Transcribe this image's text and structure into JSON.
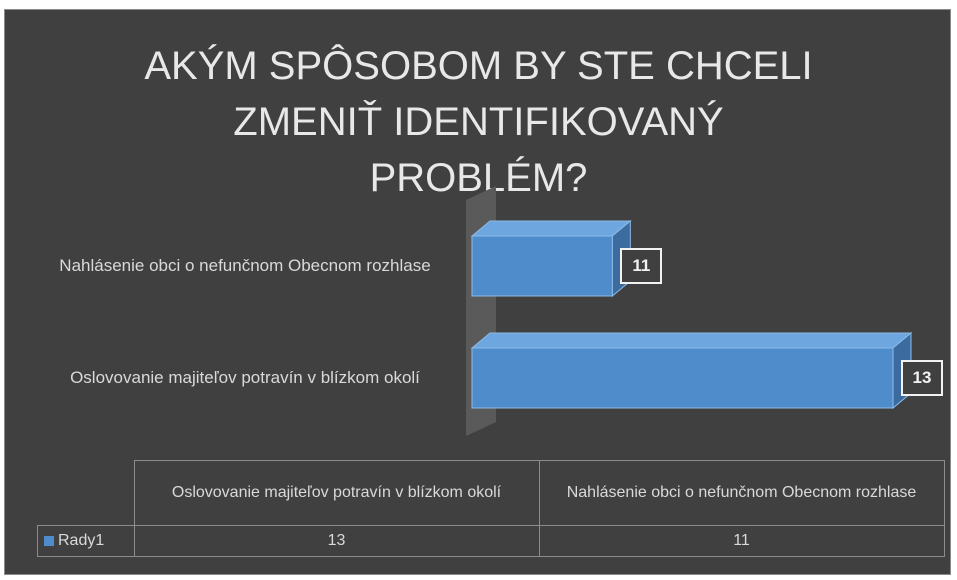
{
  "chart_data": {
    "type": "bar",
    "orientation": "horizontal",
    "title": "AKÝM SPÔSOBOM BY STE CHCELI ZMENIŤ IDENTIFIKOVANÝ PROBLÉM?",
    "categories": [
      "Oslovovanie majiteľov potravín v blízkom okolí",
      "Nahlásenie obci o nefunčnom Obecnom rozhlase"
    ],
    "series": [
      {
        "name": "Rady1",
        "color": "#4f8ccc",
        "values": [
          13,
          11
        ]
      }
    ],
    "xlim": [
      10,
      13
    ]
  }
}
